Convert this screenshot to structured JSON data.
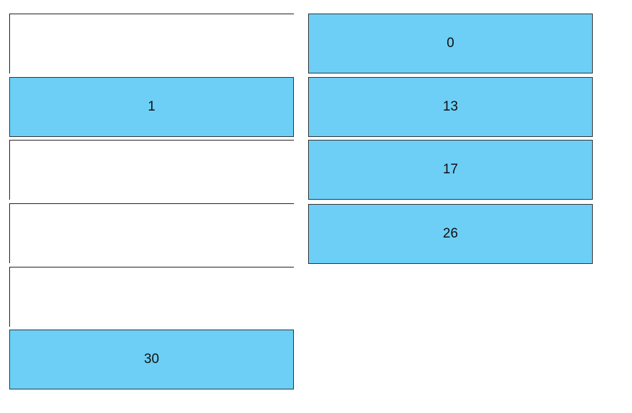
{
  "left_column": [
    null,
    "1",
    null,
    null,
    null,
    "30"
  ],
  "right_column": [
    "0",
    "13",
    "17",
    "26"
  ]
}
